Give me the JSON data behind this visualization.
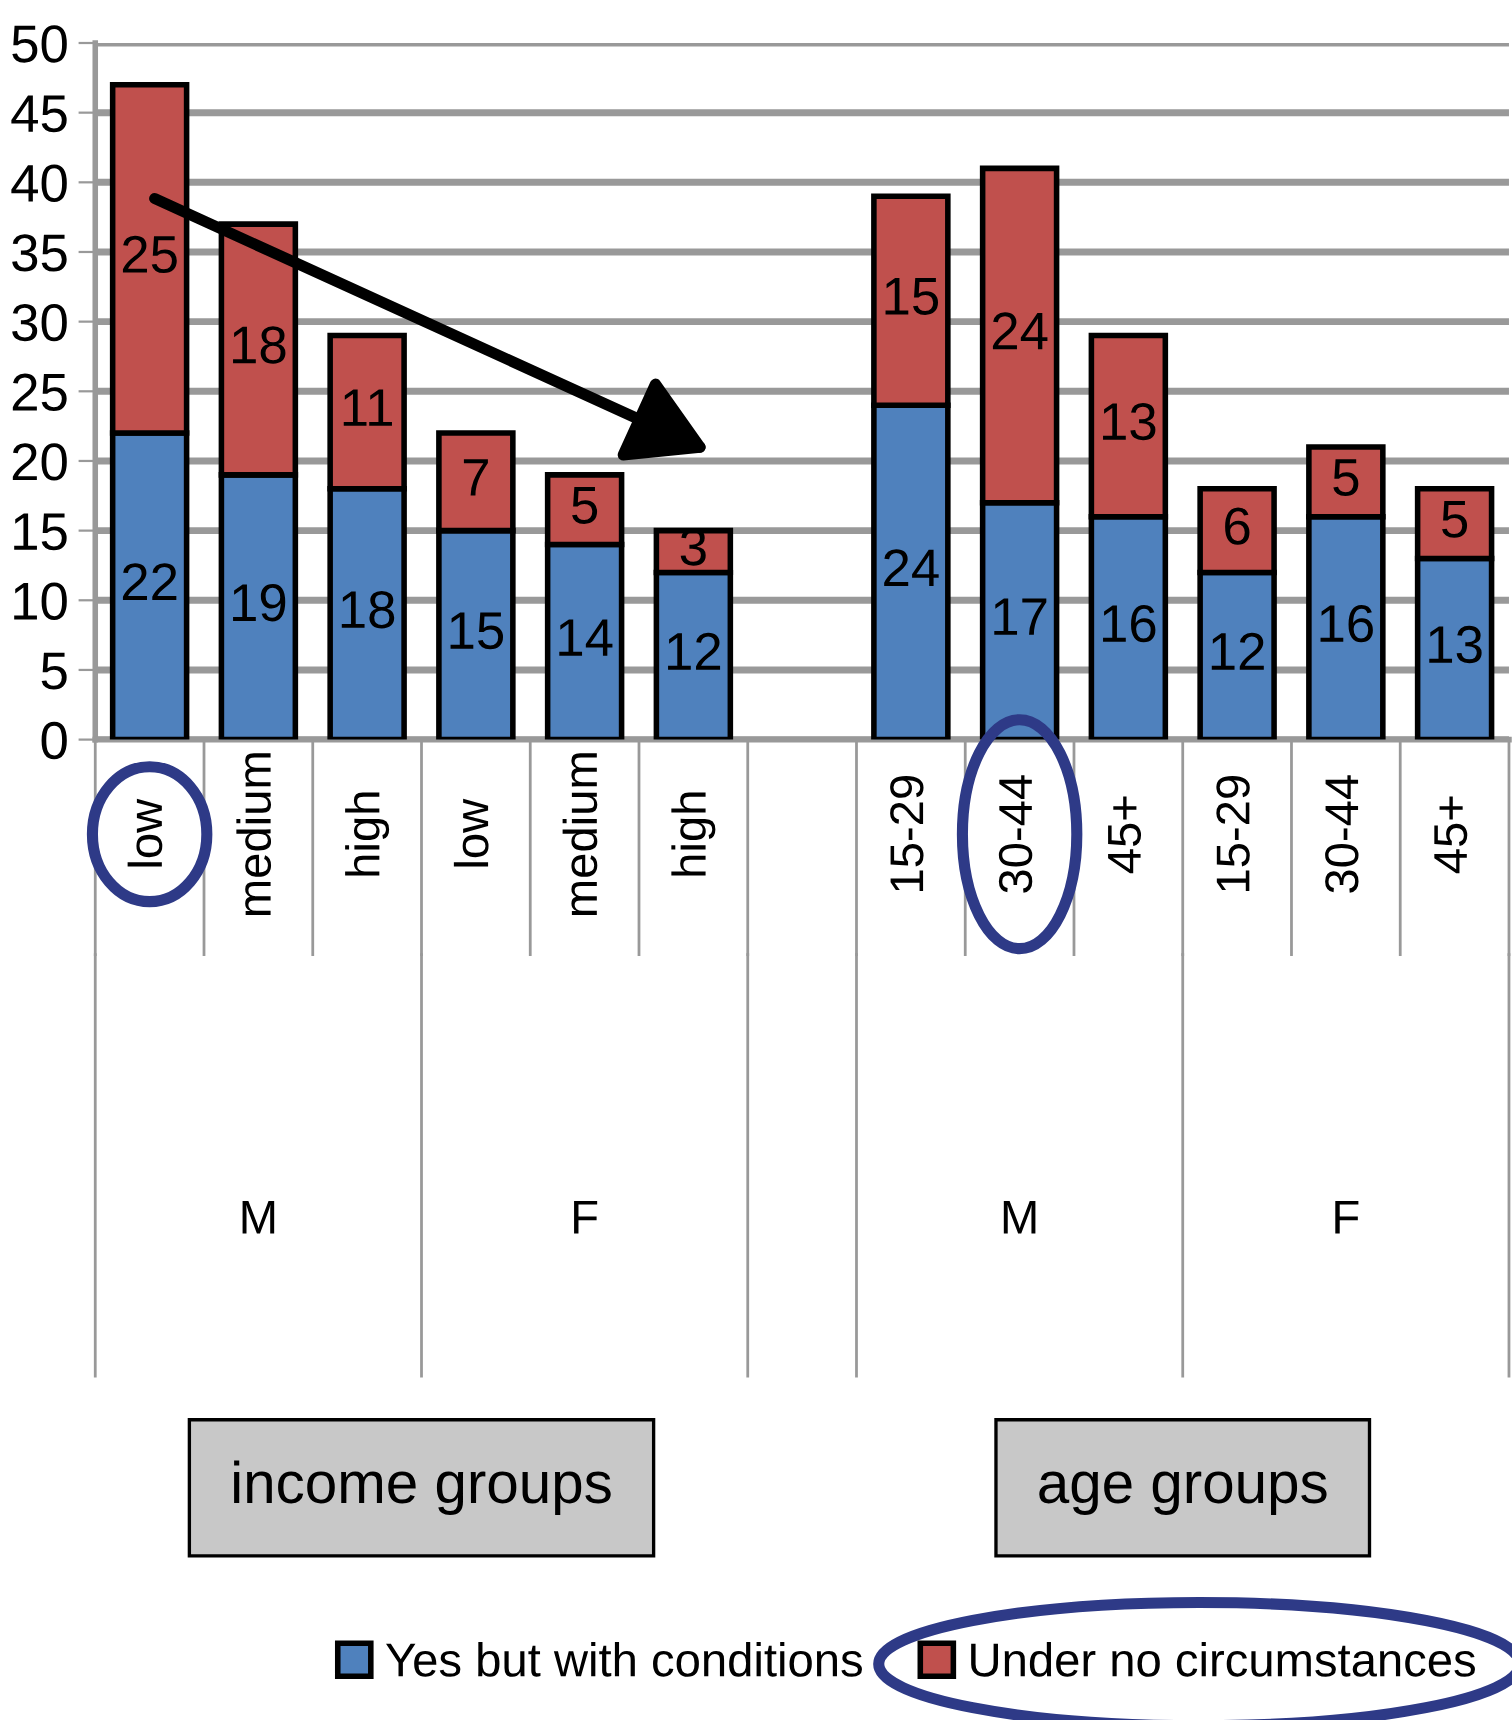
{
  "chart_data": {
    "type": "bar",
    "stacked": true,
    "data_labels": true,
    "grid": "y",
    "legend": "bottom",
    "categories": [
      "low",
      "medium",
      "high",
      "low",
      "medium",
      "high",
      null,
      "15-29",
      "30-44",
      "45+",
      "15-29",
      "30-44",
      "45+"
    ],
    "series": [
      {
        "name": "Yes but with conditions",
        "color": "#4f81bd",
        "values": [
          22,
          19,
          18,
          15,
          14,
          12,
          null,
          24,
          17,
          16,
          12,
          16,
          13
        ]
      },
      {
        "name": "Under no circumstances",
        "color": "#c0504d",
        "values": [
          25,
          18,
          11,
          7,
          5,
          3,
          null,
          15,
          24,
          13,
          6,
          5,
          5
        ]
      }
    ],
    "ylim": [
      0,
      50
    ],
    "yticks": [
      0,
      5,
      10,
      15,
      20,
      25,
      30,
      35,
      40,
      45,
      50
    ],
    "annotations": [
      "M",
      "F",
      "M",
      "F",
      "income groups",
      "age groups"
    ]
  }
}
